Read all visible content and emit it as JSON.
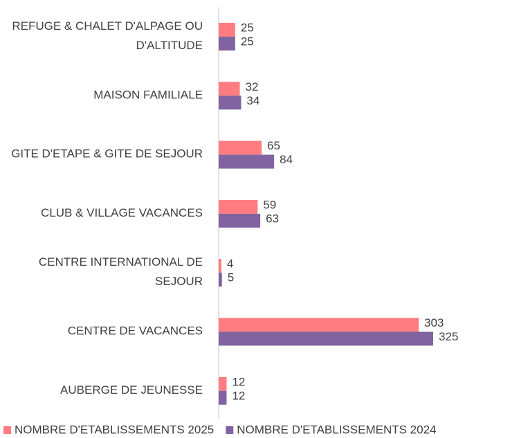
{
  "chart_data": {
    "type": "hbar",
    "categories": [
      "REFUGE & CHALET D'ALPAGE OU D'ALTITUDE",
      "MAISON FAMILIALE",
      "GITE D'ETAPE & GITE DE SEJOUR",
      "CLUB & VILLAGE VACANCES",
      "CENTRE INTERNATIONAL DE SEJOUR",
      "CENTRE DE VACANCES",
      "AUBERGE DE JEUNESSE"
    ],
    "series": [
      {
        "name": "NOMBRE D'ETABLISSEMENTS 2025",
        "color": "#ff7c80",
        "values": [
          25,
          32,
          65,
          59,
          4,
          303,
          12
        ]
      },
      {
        "name": "NOMBRE D'ETABLISSEMENTS 2024",
        "color": "#8064a2",
        "values": [
          25,
          34,
          84,
          63,
          5,
          325,
          12
        ]
      }
    ],
    "legend": "bottom"
  }
}
